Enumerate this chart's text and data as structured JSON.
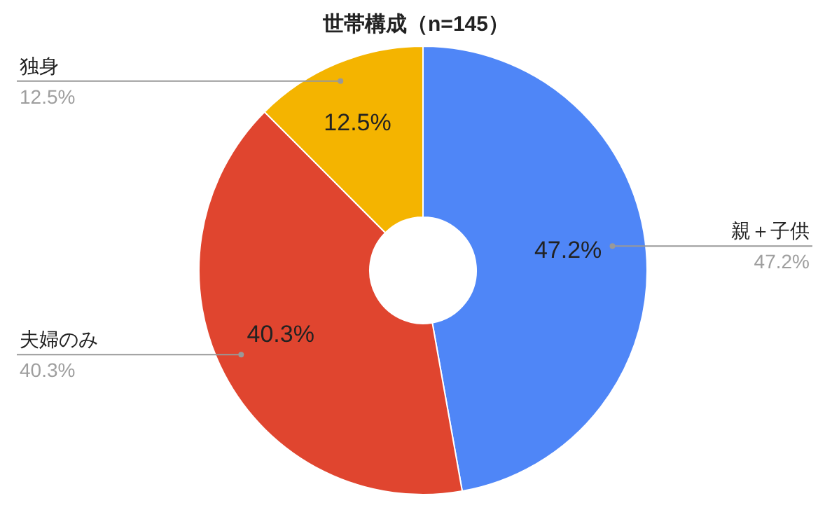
{
  "chart_data": {
    "type": "donut",
    "title": "世帯構成（n=145）",
    "categories": [
      "親＋子供",
      "夫婦のみ",
      "独身"
    ],
    "values": [
      47.2,
      40.3,
      12.5
    ],
    "value_labels": [
      "47.2%",
      "40.3%",
      "12.5%"
    ],
    "colors": [
      "#4f86f7",
      "#e0452f",
      "#f4b400"
    ],
    "legend": false
  }
}
